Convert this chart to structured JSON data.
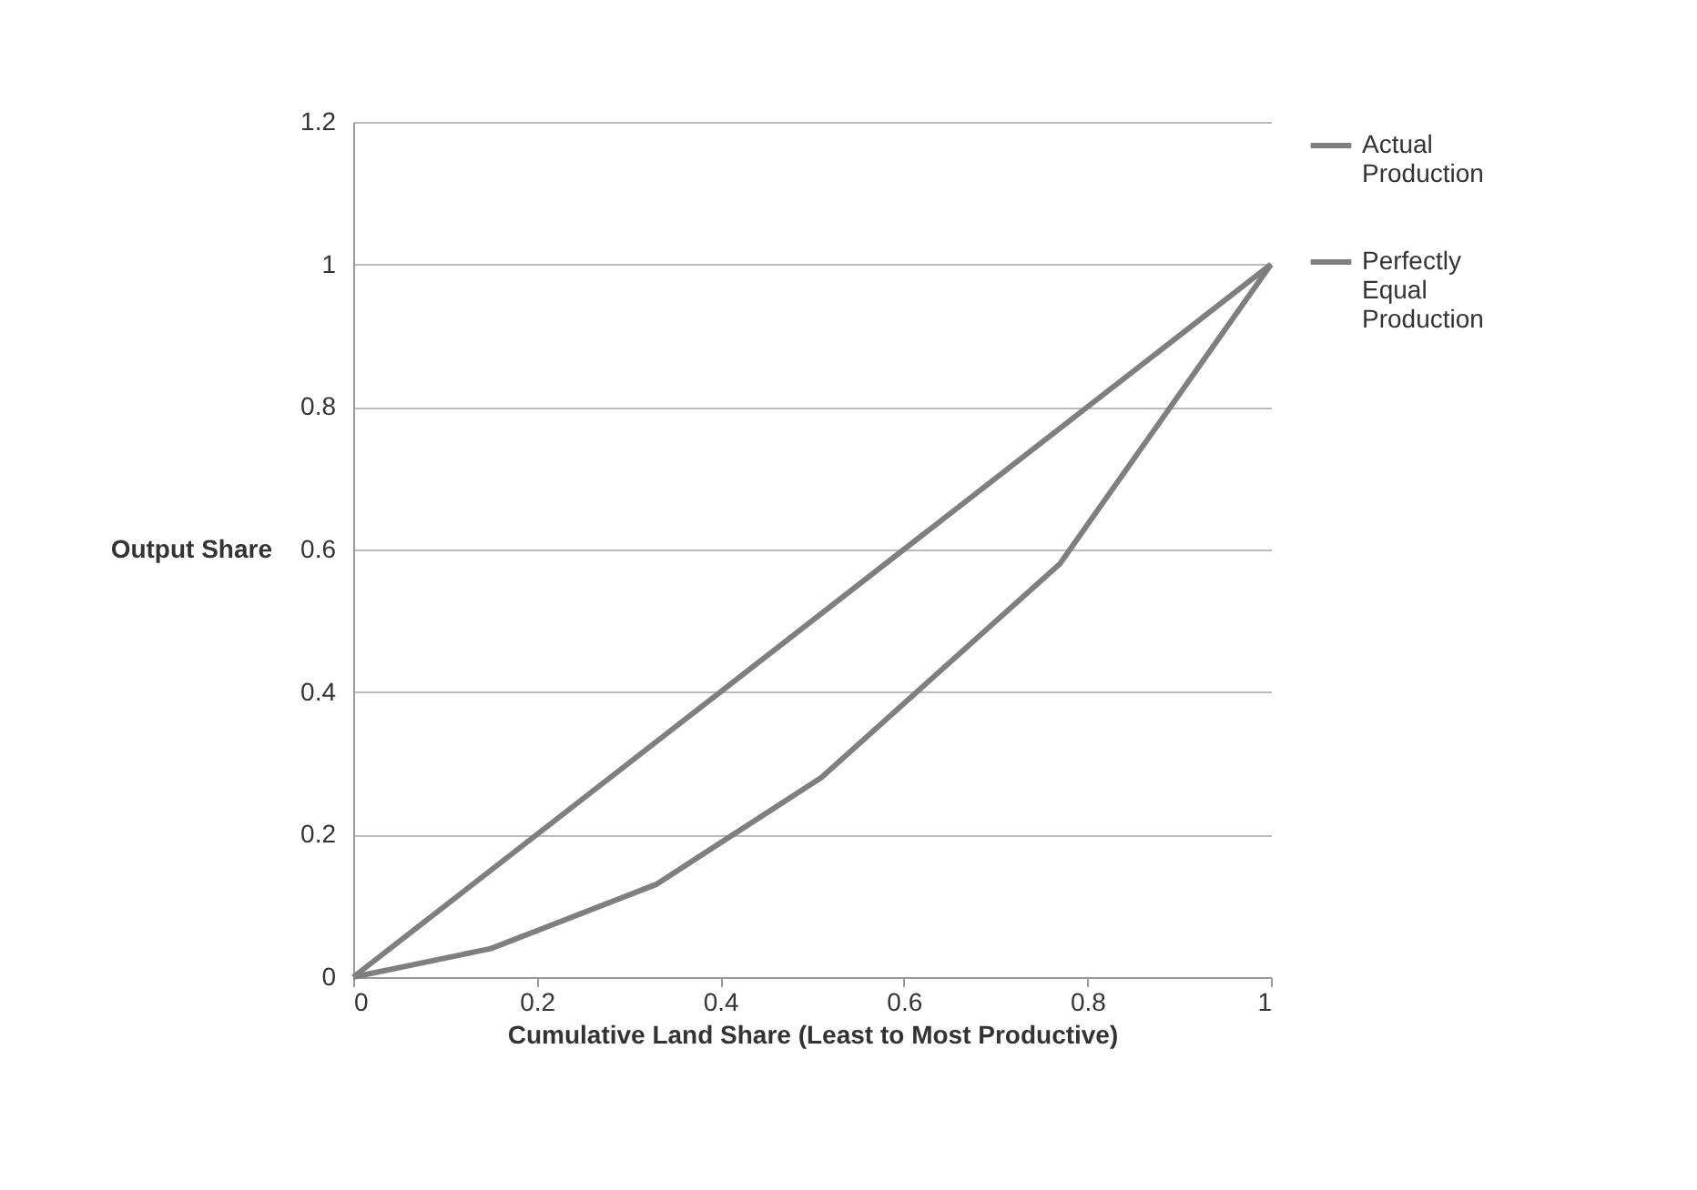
{
  "chart_data": {
    "type": "line",
    "xlabel": "Cumulative Land Share (Least to Most Productive)",
    "ylabel": "Output Share",
    "series": [
      {
        "name": "Actual Production",
        "color": "#7f7f7f",
        "x": [
          0,
          0.15,
          0.33,
          0.51,
          0.77,
          1
        ],
        "values": [
          0,
          0.04,
          0.13,
          0.28,
          0.58,
          1
        ]
      },
      {
        "name": "Perfectly Equal Production",
        "color": "#7f7f7f",
        "x": [
          0,
          1
        ],
        "values": [
          0,
          1
        ]
      }
    ],
    "xlim": [
      0,
      1
    ],
    "xticks": [
      0,
      0.2,
      0.4,
      0.6,
      0.8,
      1
    ],
    "ylim": [
      0,
      1.2
    ],
    "yticks": [
      0,
      0.2,
      0.4,
      0.6,
      0.8,
      1,
      1.2
    ],
    "grid": "y",
    "legend": "right",
    "marker": "none",
    "line_style": "solid"
  }
}
